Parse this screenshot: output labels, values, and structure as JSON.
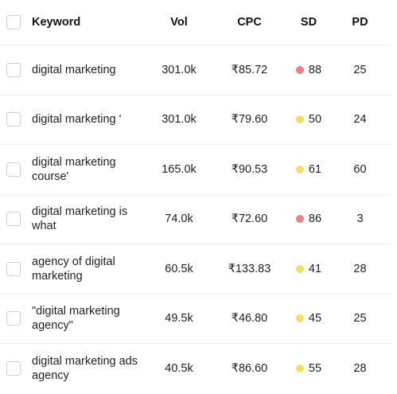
{
  "header": {
    "keyword": "Keyword",
    "vol": "Vol",
    "cpc": "CPC",
    "sd": "SD",
    "pd": "PD"
  },
  "colors": {
    "sd_high": "#f08080",
    "sd_medium": "#f2df5e"
  },
  "rows": [
    {
      "keyword": "digital marketing",
      "vol": "301.0k",
      "cpc": "₹85.72",
      "sd": "88",
      "sd_level": "high",
      "pd": "25"
    },
    {
      "keyword": "digital marketing '",
      "vol": "301.0k",
      "cpc": "₹79.60",
      "sd": "50",
      "sd_level": "medium",
      "pd": "24"
    },
    {
      "keyword": "digital marketing course'",
      "vol": "165.0k",
      "cpc": "₹90.53",
      "sd": "61",
      "sd_level": "medium",
      "pd": "60"
    },
    {
      "keyword": "digital marketing is what",
      "vol": "74.0k",
      "cpc": "₹72.60",
      "sd": "86",
      "sd_level": "high",
      "pd": "3"
    },
    {
      "keyword": "agency of digital marketing",
      "vol": "60.5k",
      "cpc": "₹133.83",
      "sd": "41",
      "sd_level": "medium",
      "pd": "28"
    },
    {
      "keyword": "\"digital marketing agency\"",
      "vol": "49.5k",
      "cpc": "₹46.80",
      "sd": "45",
      "sd_level": "medium",
      "pd": "25"
    },
    {
      "keyword": "digital marketing ads agency",
      "vol": "40.5k",
      "cpc": "₹86.60",
      "sd": "55",
      "sd_level": "medium",
      "pd": "28"
    }
  ]
}
